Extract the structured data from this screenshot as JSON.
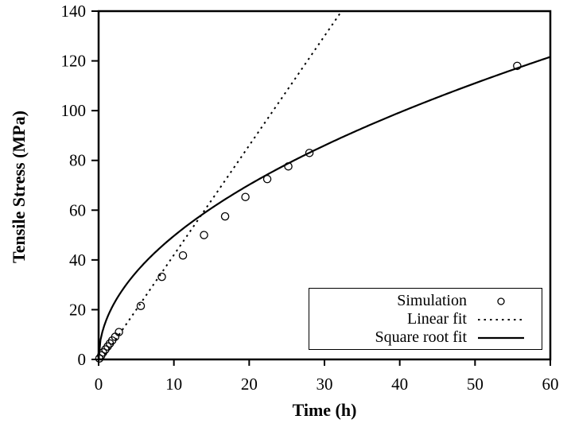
{
  "figure": {
    "background": "#ffffff",
    "ink_color": "#000000"
  },
  "chart_data": {
    "type": "scatter",
    "title": "",
    "xlabel": "Time (h)",
    "ylabel": "Tensile Stress (MPa)",
    "xlim": [
      0,
      60
    ],
    "ylim": [
      0,
      140
    ],
    "xticks": [
      0,
      10,
      20,
      30,
      40,
      50,
      60
    ],
    "yticks": [
      0,
      20,
      40,
      60,
      80,
      100,
      120,
      140
    ],
    "grid": false,
    "frame": "full-box",
    "tick_style": "outside",
    "legend_position": "bottom-right",
    "series": [
      {
        "name": "Simulation",
        "type": "scatter",
        "marker": "open-circle",
        "points": [
          [
            0.1,
            0.4
          ],
          [
            0.35,
            1.6
          ],
          [
            0.6,
            2.8
          ],
          [
            0.9,
            4.0
          ],
          [
            1.2,
            5.2
          ],
          [
            1.5,
            6.4
          ],
          [
            1.8,
            7.6
          ],
          [
            2.2,
            9.1
          ],
          [
            2.7,
            11.0
          ],
          [
            5.6,
            21.5
          ],
          [
            8.4,
            33.2
          ],
          [
            11.2,
            41.8
          ],
          [
            14.0,
            50.0
          ],
          [
            16.8,
            57.5
          ],
          [
            19.5,
            65.3
          ],
          [
            22.4,
            72.5
          ],
          [
            25.2,
            77.6
          ],
          [
            28.0,
            83.0
          ],
          [
            55.6,
            118.0
          ]
        ]
      },
      {
        "name": "Linear fit",
        "type": "line",
        "style": "dashed",
        "fit": {
          "form": "y = a*x + b",
          "a": 4.4,
          "b": -2.0
        },
        "x_range": [
          0.45,
          32.27
        ]
      },
      {
        "name": "Square root fit",
        "type": "line",
        "style": "solid",
        "fit": {
          "form": "y = c*sqrt(x)",
          "c": 15.7
        },
        "x_range": [
          0,
          60
        ]
      }
    ]
  },
  "legend": {
    "entries": [
      {
        "label": "Simulation",
        "sample": "circle-marker"
      },
      {
        "label": "Linear fit",
        "sample": "dashed-line"
      },
      {
        "label": "Square root fit",
        "sample": "solid-line"
      }
    ]
  }
}
